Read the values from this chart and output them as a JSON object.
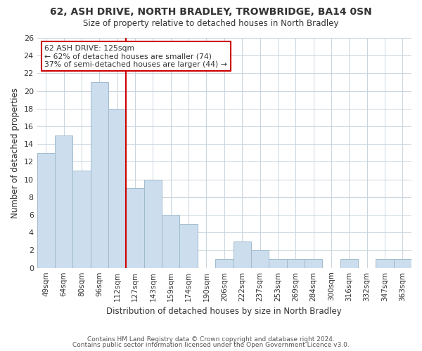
{
  "title": "62, ASH DRIVE, NORTH BRADLEY, TROWBRIDGE, BA14 0SN",
  "subtitle": "Size of property relative to detached houses in North Bradley",
  "xlabel": "Distribution of detached houses by size in North Bradley",
  "ylabel": "Number of detached properties",
  "bar_color": "#ccdded",
  "bar_edge_color": "#a0bccc",
  "categories": [
    "49sqm",
    "64sqm",
    "80sqm",
    "96sqm",
    "112sqm",
    "127sqm",
    "143sqm",
    "159sqm",
    "174sqm",
    "190sqm",
    "206sqm",
    "222sqm",
    "237sqm",
    "253sqm",
    "269sqm",
    "284sqm",
    "300sqm",
    "316sqm",
    "332sqm",
    "347sqm",
    "363sqm"
  ],
  "values": [
    13,
    15,
    11,
    21,
    18,
    9,
    10,
    6,
    5,
    0,
    1,
    3,
    2,
    1,
    1,
    1,
    0,
    1,
    0,
    1,
    1
  ],
  "vline_color": "#cc0000",
  "ylim": [
    0,
    26
  ],
  "yticks": [
    0,
    2,
    4,
    6,
    8,
    10,
    12,
    14,
    16,
    18,
    20,
    22,
    24,
    26
  ],
  "annotation_title": "62 ASH DRIVE: 125sqm",
  "annotation_line1": "← 62% of detached houses are smaller (74)",
  "annotation_line2": "37% of semi-detached houses are larger (44) →",
  "footer1": "Contains HM Land Registry data © Crown copyright and database right 2024.",
  "footer2": "Contains public sector information licensed under the Open Government Licence v3.0.",
  "background_color": "#ffffff",
  "grid_color": "#c8d4de"
}
